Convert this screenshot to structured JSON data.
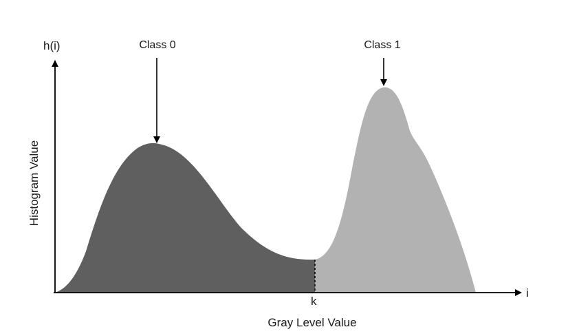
{
  "figure": {
    "y_axis_symbol": "h(i)",
    "x_axis_symbol": "i",
    "y_axis_label": "Histogram Value",
    "x_axis_label": "Gray Level Value",
    "threshold_label": "k",
    "class0_label": "Class 0",
    "class1_label": "Class 1",
    "colors": {
      "class0_fill": "#5f5f5f",
      "class1_fill": "#b2b2b2",
      "axis": "#000000"
    }
  }
}
